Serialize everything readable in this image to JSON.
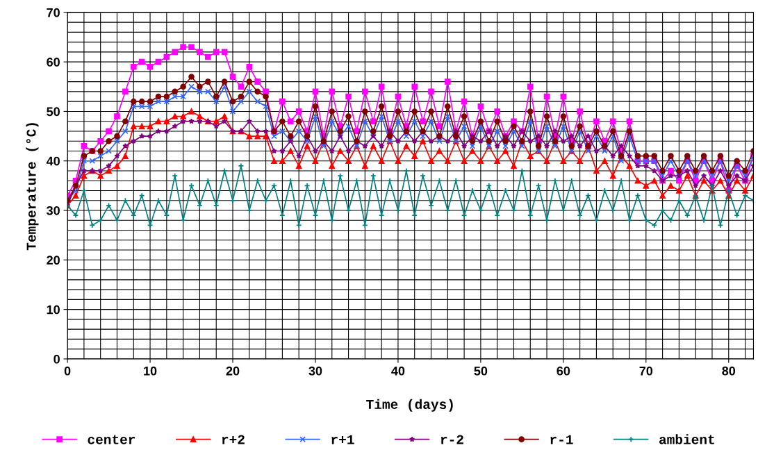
{
  "chart_data": {
    "type": "line",
    "xlabel": "Time (days)",
    "ylabel": "Temperature (°C)",
    "x": [
      0,
      1,
      2,
      3,
      4,
      5,
      6,
      7,
      8,
      9,
      10,
      11,
      12,
      13,
      14,
      15,
      16,
      17,
      18,
      19,
      20,
      21,
      22,
      23,
      24,
      25,
      26,
      27,
      28,
      29,
      30,
      31,
      32,
      33,
      34,
      35,
      36,
      37,
      38,
      39,
      40,
      41,
      42,
      43,
      44,
      45,
      46,
      47,
      48,
      49,
      50,
      51,
      52,
      53,
      54,
      55,
      56,
      57,
      58,
      59,
      60,
      61,
      62,
      63,
      64,
      65,
      66,
      67,
      68,
      69,
      70,
      71,
      72,
      73,
      74,
      75,
      76,
      77,
      78,
      79,
      80,
      81,
      82,
      83
    ],
    "xlim": [
      0,
      83
    ],
    "xticks": [
      0,
      10,
      20,
      30,
      40,
      50,
      60,
      70,
      80
    ],
    "ylim": [
      0,
      70
    ],
    "yticks": [
      0,
      10,
      20,
      30,
      40,
      50,
      60,
      70
    ],
    "grid": true,
    "legend": "bottom",
    "line_style": "solid",
    "series": [
      {
        "name": "center",
        "color": "#ff00ff",
        "marker": "square",
        "values": [
          33,
          36,
          43,
          42,
          44,
          46,
          49,
          54,
          59,
          60,
          59,
          60,
          61,
          62,
          63,
          63,
          62,
          61,
          62,
          62,
          57,
          55,
          59,
          56,
          54,
          46,
          52,
          48,
          50,
          46,
          54,
          45,
          54,
          47,
          53,
          46,
          54,
          48,
          55,
          46,
          53,
          47,
          55,
          48,
          54,
          47,
          56,
          46,
          52,
          45,
          51,
          46,
          50,
          45,
          48,
          46,
          55,
          44,
          53,
          45,
          53,
          44,
          50,
          43,
          48,
          44,
          48,
          42,
          48,
          40,
          40,
          40,
          36,
          38,
          36,
          40,
          36,
          40,
          36,
          40,
          34,
          39,
          36,
          41
        ]
      },
      {
        "name": "r+2",
        "color": "#ff0000",
        "marker": "triangle",
        "values": [
          31,
          33,
          37,
          38,
          37,
          38,
          39,
          41,
          47,
          47,
          47,
          48,
          48,
          49,
          49,
          50,
          49,
          48,
          48,
          49,
          46,
          46,
          45,
          45,
          45,
          40,
          40,
          42,
          39,
          43,
          40,
          44,
          39,
          42,
          40,
          43,
          39,
          43,
          40,
          44,
          40,
          43,
          41,
          44,
          40,
          42,
          40,
          44,
          40,
          42,
          40,
          43,
          40,
          42,
          39,
          44,
          41,
          42,
          40,
          44,
          40,
          42,
          40,
          43,
          38,
          40,
          37,
          41,
          39,
          36,
          35,
          36,
          33,
          35,
          34,
          37,
          33,
          36,
          34,
          36,
          33,
          36,
          34,
          37
        ]
      },
      {
        "name": "r+1",
        "color": "#3366ff",
        "marker": "cross",
        "values": [
          32,
          34,
          40,
          40,
          41,
          42,
          44,
          46,
          51,
          51,
          51,
          52,
          52,
          53,
          53,
          55,
          54,
          54,
          52,
          55,
          50,
          52,
          54,
          52,
          51,
          45,
          46,
          44,
          46,
          44,
          49,
          43,
          48,
          45,
          47,
          43,
          48,
          45,
          49,
          44,
          48,
          45,
          48,
          45,
          48,
          44,
          49,
          44,
          47,
          43,
          47,
          43,
          46,
          43,
          46,
          43,
          48,
          42,
          47,
          43,
          47,
          42,
          46,
          42,
          45,
          42,
          45,
          40,
          45,
          40,
          40,
          40,
          37,
          40,
          37,
          40,
          37,
          40,
          37,
          40,
          36,
          39,
          37,
          41
        ]
      },
      {
        "name": "r-2",
        "color": "#800080",
        "marker": "star",
        "values": [
          31,
          35,
          38,
          38,
          38,
          39,
          41,
          43,
          44,
          45,
          45,
          46,
          46,
          47,
          48,
          48,
          48,
          48,
          47,
          48,
          46,
          46,
          48,
          46,
          46,
          42,
          42,
          44,
          41,
          45,
          42,
          44,
          42,
          45,
          42,
          44,
          43,
          45,
          43,
          46,
          44,
          46,
          44,
          46,
          44,
          45,
          44,
          46,
          43,
          45,
          44,
          46,
          43,
          45,
          43,
          46,
          44,
          45,
          43,
          46,
          44,
          45,
          43,
          45,
          42,
          43,
          41,
          43,
          41,
          39,
          39,
          38,
          36,
          37,
          37,
          38,
          35,
          37,
          35,
          38,
          35,
          37,
          36,
          39
        ]
      },
      {
        "name": "r-1",
        "color": "#800000",
        "marker": "circle",
        "values": [
          32,
          35,
          41,
          42,
          42,
          44,
          45,
          48,
          52,
          52,
          52,
          53,
          53,
          54,
          55,
          57,
          55,
          56,
          53,
          56,
          52,
          53,
          56,
          54,
          53,
          46,
          48,
          45,
          48,
          45,
          51,
          44,
          50,
          46,
          49,
          44,
          50,
          46,
          51,
          45,
          50,
          46,
          50,
          46,
          50,
          45,
          51,
          45,
          49,
          44,
          48,
          44,
          48,
          44,
          47,
          44,
          50,
          43,
          49,
          44,
          49,
          43,
          47,
          43,
          46,
          43,
          46,
          41,
          46,
          41,
          41,
          41,
          38,
          41,
          38,
          41,
          38,
          41,
          38,
          41,
          37,
          40,
          38,
          42
        ]
      },
      {
        "name": "ambient",
        "color": "#008080",
        "marker": "plus",
        "values": [
          31,
          29,
          34,
          27,
          28,
          31,
          28,
          32,
          29,
          33,
          27,
          32,
          29,
          37,
          28,
          35,
          31,
          36,
          31,
          38,
          32,
          39,
          30,
          36,
          32,
          35,
          29,
          36,
          27,
          35,
          29,
          36,
          28,
          37,
          30,
          36,
          27,
          37,
          29,
          36,
          30,
          38,
          29,
          37,
          31,
          36,
          30,
          36,
          29,
          34,
          30,
          35,
          29,
          34,
          30,
          38,
          29,
          35,
          28,
          36,
          30,
          36,
          29,
          33,
          28,
          34,
          30,
          36,
          28,
          33,
          28,
          27,
          30,
          28,
          32,
          29,
          33,
          28,
          35,
          27,
          34,
          29,
          33,
          32
        ]
      }
    ]
  }
}
